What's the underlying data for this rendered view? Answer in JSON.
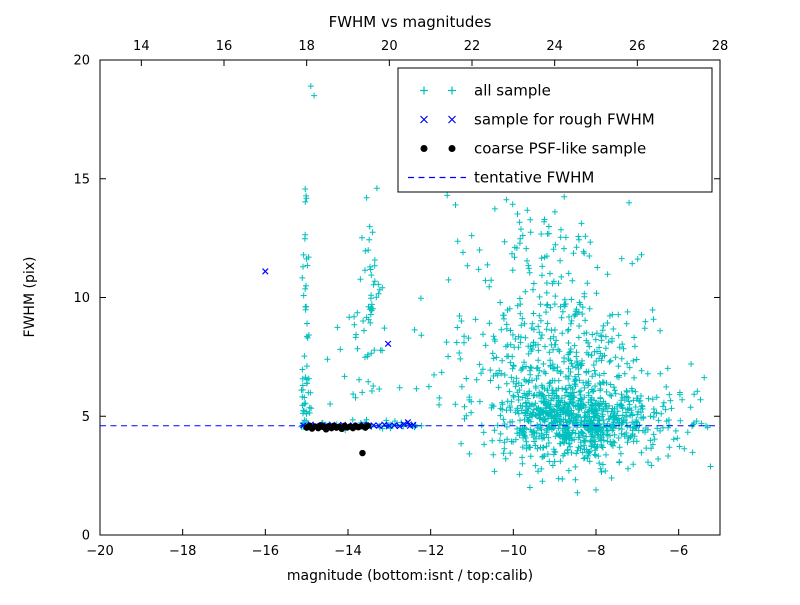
{
  "figure": {
    "title": "FWHM vs magnitudes",
    "xlabel": "magnitude (bottom:isnt / top:calib)",
    "ylabel": "FWHM (pix)"
  },
  "chart_data": {
    "type": "scatter",
    "title": "FWHM vs magnitudes",
    "xlabel": "magnitude (bottom:isnt / top:calib)",
    "ylabel": "FWHM (pix)",
    "xlim": [
      -20,
      -5
    ],
    "ylim": [
      0,
      20
    ],
    "grid": false,
    "tentative_fwhm": 4.6,
    "bottom_ticks": {
      "values": [
        -20,
        -18,
        -16,
        -14,
        -12,
        -10,
        -8,
        -6
      ],
      "labels": [
        "−20",
        "−18",
        "−16",
        "−14",
        "−12",
        "−10",
        "−8",
        "−6"
      ]
    },
    "top_ticks": {
      "values": [
        -19,
        -17,
        -15,
        -13,
        -11,
        -9,
        -7,
        -5
      ],
      "labels": [
        "14",
        "16",
        "18",
        "20",
        "22",
        "24",
        "26",
        "28"
      ]
    },
    "y_ticks": {
      "values": [
        0,
        5,
        10,
        15,
        20
      ],
      "labels": [
        "0",
        "5",
        "10",
        "15",
        "20"
      ]
    },
    "legend": {
      "position": "upper right",
      "entries": [
        {
          "label": "all sample",
          "marker": "plus",
          "color": "#00bfbf"
        },
        {
          "label": "sample for rough FWHM",
          "marker": "x",
          "color": "#0000ff"
        },
        {
          "label": "coarse PSF-like sample",
          "marker": "dot",
          "color": "#000000"
        },
        {
          "label": "tentative FWHM",
          "marker": "dashed-line",
          "color": "#0000ff"
        }
      ]
    },
    "series": [
      {
        "name": "all sample",
        "marker": "plus",
        "color": "#00bfbf",
        "seed": 1337,
        "outlier_points": [
          [
            -14.9,
            18.9
          ],
          [
            -14.82,
            18.5
          ],
          [
            -11.6,
            14.3
          ],
          [
            -11.4,
            13.9
          ],
          [
            -6.9,
            11.8
          ],
          [
            -6.45,
            8.6
          ],
          [
            -5.7,
            7.2
          ],
          [
            -8.0,
            1.9
          ],
          [
            -9.6,
            2.0
          ],
          [
            -10.3,
            15.1
          ],
          [
            -9.7,
            15.3
          ],
          [
            -8.4,
            15.0
          ],
          [
            -13.3,
            14.6
          ],
          [
            -13.55,
            14.2
          ],
          [
            -12.75,
            6.2
          ],
          [
            -5.45,
            4.7
          ]
        ],
        "clusters": [
          {
            "n": 620,
            "x": [
              "normal",
              -8.5,
              0.85,
              -11.5,
              -5.6
            ],
            "y": [
              "normal",
              4.9,
              0.65,
              3.2,
              7.0
            ]
          },
          {
            "n": 380,
            "x": [
              "normal",
              -8.9,
              1.1,
              -12.0,
              -5.8
            ],
            "y": [
              "normal",
              6.8,
              1.6,
              4.6,
              12.0
            ]
          },
          {
            "n": 120,
            "x": [
              "normal",
              -9.2,
              1.0,
              -11.8,
              -6.5
            ],
            "y": [
              "normal",
              11.0,
              1.8,
              8.0,
              15.5
            ]
          },
          {
            "n": 130,
            "x": [
              "normal",
              -8.6,
              1.2,
              -11.5,
              -5.8
            ],
            "y": [
              "normal",
              3.7,
              0.7,
              1.6,
              4.6
            ]
          },
          {
            "n": 60,
            "x": [
              "normal",
              -15.02,
              0.05,
              -15.2,
              -14.85
            ],
            "y": [
              "powtail",
              4.55,
              2.2,
              10.2
            ]
          },
          {
            "n": 50,
            "x": [
              "normal",
              -13.45,
              0.15,
              -13.9,
              -13.1
            ],
            "y": [
              "uniform",
              6.0,
              13.0
            ]
          },
          {
            "n": 45,
            "x": [
              "uniform",
              -15.05,
              -12.2
            ],
            "y": [
              "normal",
              4.65,
              0.1,
              4.4,
              4.95
            ]
          },
          {
            "n": 55,
            "x": [
              "uniform",
              -7.2,
              -5.2
            ],
            "y": [
              "normal",
              5.0,
              1.1,
              2.2,
              8.2
            ]
          },
          {
            "n": 18,
            "x": [
              "uniform",
              -12.4,
              -11.0
            ],
            "y": [
              "uniform",
              4.8,
              11.0
            ]
          },
          {
            "n": 12,
            "x": [
              "uniform",
              -14.5,
              -13.8
            ],
            "y": [
              "uniform",
              5.2,
              10.0
            ]
          }
        ]
      },
      {
        "name": "sample for rough FWHM",
        "marker": "x",
        "color": "#0000ff",
        "points": [
          [
            -16.0,
            11.1
          ],
          [
            -13.03,
            8.05
          ],
          [
            -15.08,
            4.62
          ],
          [
            -14.97,
            4.58
          ],
          [
            -14.9,
            4.65
          ],
          [
            -14.78,
            4.6
          ],
          [
            -14.63,
            4.62
          ],
          [
            -14.5,
            4.58
          ],
          [
            -14.38,
            4.63
          ],
          [
            -14.25,
            4.6
          ],
          [
            -14.12,
            4.64
          ],
          [
            -14.0,
            4.58
          ],
          [
            -13.88,
            4.62
          ],
          [
            -13.75,
            4.6
          ],
          [
            -13.62,
            4.64
          ],
          [
            -13.5,
            4.58
          ],
          [
            -13.38,
            4.62
          ],
          [
            -13.25,
            4.6
          ],
          [
            -13.12,
            4.65
          ],
          [
            -13.0,
            4.6
          ],
          [
            -12.88,
            4.62
          ],
          [
            -12.75,
            4.58
          ],
          [
            -12.65,
            4.66
          ],
          [
            -12.55,
            4.75
          ],
          [
            -12.5,
            4.6
          ],
          [
            -12.42,
            4.63
          ]
        ]
      },
      {
        "name": "coarse PSF-like sample",
        "marker": "dot",
        "color": "#000000",
        "points": [
          [
            -15.0,
            4.52
          ],
          [
            -14.93,
            4.6
          ],
          [
            -14.87,
            4.48
          ],
          [
            -14.8,
            4.57
          ],
          [
            -14.72,
            4.5
          ],
          [
            -14.66,
            4.62
          ],
          [
            -14.6,
            4.55
          ],
          [
            -14.53,
            4.45
          ],
          [
            -14.47,
            4.58
          ],
          [
            -14.4,
            4.5
          ],
          [
            -14.34,
            4.6
          ],
          [
            -14.28,
            4.52
          ],
          [
            -14.21,
            4.56
          ],
          [
            -14.15,
            4.47
          ],
          [
            -14.08,
            4.6
          ],
          [
            -14.02,
            4.53
          ],
          [
            -13.95,
            4.57
          ],
          [
            -13.88,
            4.5
          ],
          [
            -13.82,
            4.6
          ],
          [
            -13.75,
            4.54
          ],
          [
            -13.68,
            4.58
          ],
          [
            -13.65,
            3.45
          ],
          [
            -13.58,
            4.52
          ],
          [
            -13.52,
            4.6
          ]
        ]
      },
      {
        "name": "tentative FWHM",
        "type": "hline",
        "y": 4.6,
        "color": "#0000ff",
        "linestyle": "dashed"
      }
    ]
  }
}
